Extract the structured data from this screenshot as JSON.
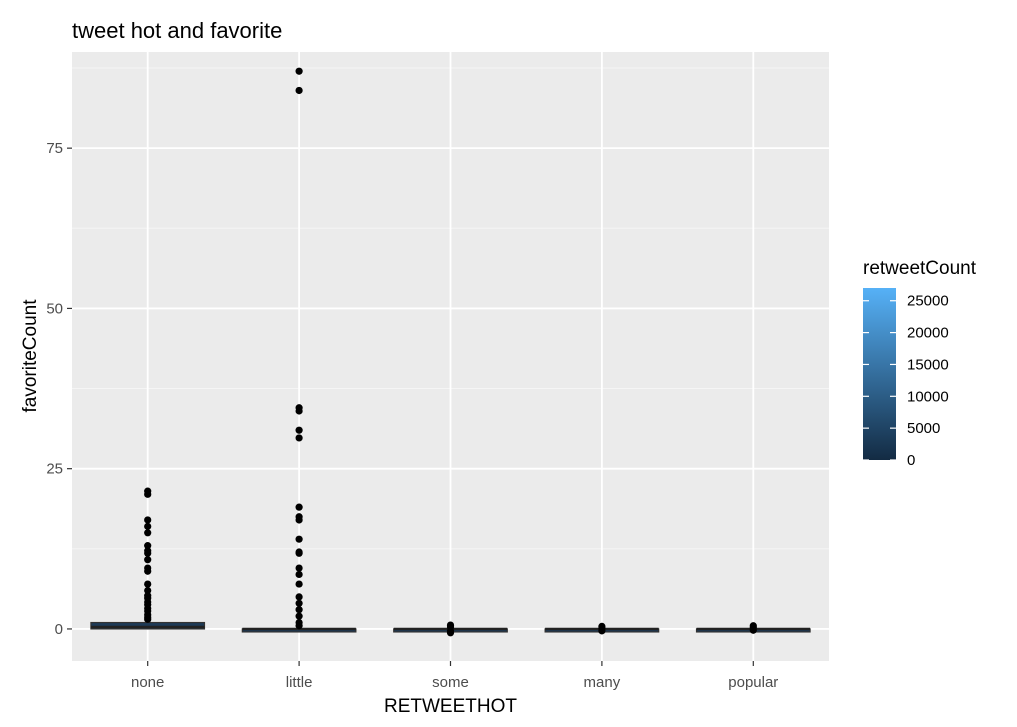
{
  "chart_data": {
    "type": "boxplot",
    "title": "tweet hot and favorite",
    "xlabel": "RETWEETHOT",
    "ylabel": "favoriteCount",
    "categories": [
      "none",
      "little",
      "some",
      "many",
      "popular"
    ],
    "ylim": [
      -5,
      90
    ],
    "yticks": [
      0,
      25,
      50,
      75
    ],
    "boxes": [
      {
        "category": "none",
        "q1": 0,
        "median": 0.3,
        "q3": 1,
        "whisker_low": 0,
        "whisker_high": 1,
        "outliers": [
          21.5,
          21,
          17,
          16,
          15,
          13,
          12.2,
          11.8,
          10.8,
          9.5,
          9,
          7,
          6,
          5.2,
          4.8,
          4.2,
          3.8,
          3.2,
          2.8,
          2.2,
          1.8,
          1.5
        ]
      },
      {
        "category": "little",
        "q1": 0,
        "median": 0,
        "q3": 0,
        "whisker_low": 0,
        "whisker_high": 0,
        "outliers": [
          87,
          84,
          34.5,
          34,
          31,
          29.8,
          19,
          17.5,
          17,
          14,
          12,
          11.8,
          9.5,
          8.5,
          7,
          5,
          4,
          3,
          2,
          1,
          0.5
        ]
      },
      {
        "category": "some",
        "q1": 0,
        "median": 0,
        "q3": 0,
        "whisker_low": 0,
        "whisker_high": 0,
        "outliers": [
          0.6,
          0.3,
          -0.3,
          -0.6
        ]
      },
      {
        "category": "many",
        "q1": 0,
        "median": 0,
        "q3": 0,
        "whisker_low": 0,
        "whisker_high": 0,
        "outliers": [
          0.4,
          0.1,
          -0.3
        ]
      },
      {
        "category": "popular",
        "q1": 0,
        "median": 0,
        "q3": 0,
        "whisker_low": 0,
        "whisker_high": 0,
        "outliers": [
          0.5,
          0.2,
          -0.2
        ]
      }
    ],
    "legend": {
      "title": "retweetCount",
      "type": "gradient",
      "range": [
        0,
        27000
      ],
      "breaks": [
        0,
        5000,
        10000,
        15000,
        20000,
        25000
      ],
      "labels": [
        "0",
        "5000",
        "10000",
        "15000",
        "20000",
        "25000"
      ],
      "color_low": "#132b43",
      "color_high": "#56b1f7",
      "placement": "right"
    },
    "box_fill": "#1d3a57",
    "panel_background": "#ebebeb",
    "grid": true
  }
}
